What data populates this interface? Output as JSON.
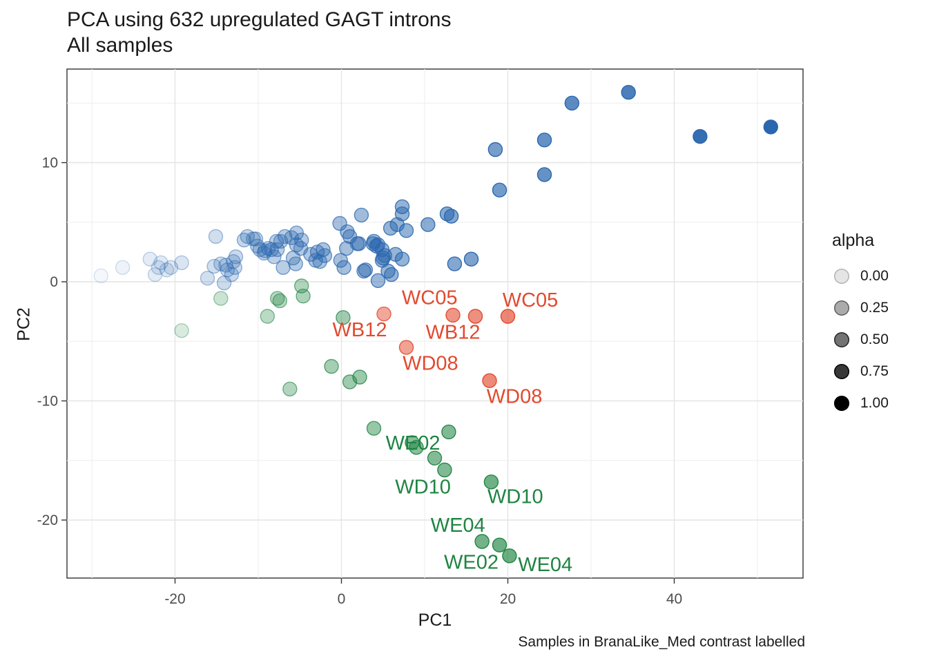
{
  "header": {
    "title_line1": "PCA using 632 upregulated GAGT introns",
    "title_line2": "All samples"
  },
  "caption": "Samples in BranaLike_Med contrast labelled",
  "legend": {
    "title": "alpha",
    "entries": [
      {
        "label": "0.00",
        "value": 0.0
      },
      {
        "label": "0.25",
        "value": 0.25
      },
      {
        "label": "0.50",
        "value": 0.5
      },
      {
        "label": "0.75",
        "value": 0.75
      },
      {
        "label": "1.00",
        "value": 1.0
      }
    ]
  },
  "axes": {
    "x": {
      "label": "PC1",
      "ticks": [
        -20,
        0,
        20,
        40
      ],
      "minor_ticks": [
        -30,
        -10,
        10,
        30,
        50
      ],
      "range": [
        -33,
        55.5
      ]
    },
    "y": {
      "label": "PC2",
      "ticks": [
        -20,
        -10,
        0,
        10
      ],
      "minor_ticks": [
        -15,
        -5,
        5,
        15
      ],
      "range": [
        -24.8,
        17.9
      ]
    }
  },
  "colors": {
    "blue": "#2A67AE",
    "green": "#1F8442",
    "red": "#E2492F",
    "grid_major": "#E4E4E4",
    "grid_minor": "#F0F0F0",
    "panel_border": "#333333",
    "tick_mark": "#333333",
    "tick_label": "#4D4D4D",
    "legend_dot": "#000000"
  },
  "chart_data": {
    "type": "scatter",
    "title": "PCA using 632 upregulated GAGT introns",
    "subtitle": "All samples",
    "xlabel": "PC1",
    "ylabel": "PC2",
    "xlim": [
      -33,
      55.5
    ],
    "ylim": [
      -24.8,
      17.9
    ],
    "grid": true,
    "legend_position": "right",
    "alpha_legend_values": [
      0.0,
      0.25,
      0.5,
      0.75,
      1.0
    ],
    "note": "points are [PC1, PC2, alpha]; alpha increases with PC1",
    "series": [
      {
        "name": "blue",
        "color": "#2A67AE",
        "points": [
          [
            -28.9,
            0.5,
            0.05
          ],
          [
            -26.3,
            1.2,
            0.08
          ],
          [
            -23.0,
            1.9,
            0.13
          ],
          [
            -22.4,
            0.6,
            0.13
          ],
          [
            -22.0,
            1.2,
            0.14
          ],
          [
            -21.7,
            1.6,
            0.14
          ],
          [
            -21.0,
            1.0,
            0.15
          ],
          [
            -20.5,
            1.2,
            0.16
          ],
          [
            -19.2,
            1.6,
            0.17
          ],
          [
            -16.1,
            0.3,
            0.21
          ],
          [
            -15.3,
            1.3,
            0.22
          ],
          [
            -15.1,
            3.8,
            0.22
          ],
          [
            -14.5,
            1.5,
            0.23
          ],
          [
            -14.1,
            -0.1,
            0.24
          ],
          [
            -13.9,
            1.4,
            0.24
          ],
          [
            -13.7,
            1.0,
            0.24
          ],
          [
            -13.2,
            0.6,
            0.25
          ],
          [
            -13.0,
            1.7,
            0.25
          ],
          [
            -12.8,
            1.2,
            0.25
          ],
          [
            -12.7,
            2.1,
            0.25
          ],
          [
            -11.7,
            3.5,
            0.27
          ],
          [
            -11.3,
            3.8,
            0.27
          ],
          [
            -10.6,
            3.6,
            0.28
          ],
          [
            -10.3,
            3.6,
            0.28
          ],
          [
            -10.1,
            3.0,
            0.29
          ],
          [
            -9.8,
            2.7,
            0.29
          ],
          [
            -9.3,
            2.4,
            0.3
          ],
          [
            -9.2,
            2.6,
            0.3
          ],
          [
            -8.8,
            2.8,
            0.3
          ],
          [
            -8.4,
            2.7,
            0.31
          ],
          [
            -8.1,
            2.1,
            0.31
          ],
          [
            -7.8,
            3.4,
            0.32
          ],
          [
            -7.7,
            2.7,
            0.32
          ],
          [
            -7.3,
            3.4,
            0.32
          ],
          [
            -7.0,
            1.2,
            0.33
          ],
          [
            -6.8,
            3.8,
            0.33
          ],
          [
            -6.0,
            3.7,
            0.34
          ],
          [
            -5.8,
            2.0,
            0.34
          ],
          [
            -5.5,
            1.5,
            0.34
          ],
          [
            -5.4,
            4.1,
            0.35
          ],
          [
            -5.4,
            3.1,
            0.35
          ],
          [
            -4.9,
            2.8,
            0.35
          ],
          [
            -4.8,
            3.5,
            0.35
          ],
          [
            -3.7,
            2.3,
            0.37
          ],
          [
            -3.1,
            1.8,
            0.37
          ],
          [
            -2.9,
            2.5,
            0.38
          ],
          [
            -2.6,
            1.7,
            0.38
          ],
          [
            -2.2,
            2.7,
            0.39
          ],
          [
            -2.0,
            2.2,
            0.39
          ],
          [
            -0.2,
            4.9,
            0.41
          ],
          [
            -0.1,
            1.8,
            0.41
          ],
          [
            0.3,
            1.2,
            0.42
          ],
          [
            0.6,
            2.8,
            0.42
          ],
          [
            0.7,
            4.2,
            0.42
          ],
          [
            1.0,
            3.8,
            0.43
          ],
          [
            1.9,
            3.2,
            0.44
          ],
          [
            2.1,
            3.2,
            0.44
          ],
          [
            2.4,
            5.6,
            0.44
          ],
          [
            2.7,
            0.9,
            0.45
          ],
          [
            2.9,
            1.0,
            0.45
          ],
          [
            3.8,
            3.2,
            0.46
          ],
          [
            3.9,
            3.4,
            0.46
          ],
          [
            4.2,
            3.0,
            0.47
          ],
          [
            4.4,
            3.1,
            0.47
          ],
          [
            4.4,
            0.1,
            0.47
          ],
          [
            4.9,
            2.7,
            0.47
          ],
          [
            4.9,
            1.8,
            0.47
          ],
          [
            5.0,
            2.0,
            0.48
          ],
          [
            5.2,
            2.2,
            0.48
          ],
          [
            5.6,
            0.9,
            0.48
          ],
          [
            5.9,
            4.5,
            0.49
          ],
          [
            6.0,
            0.6,
            0.49
          ],
          [
            6.5,
            2.3,
            0.49
          ],
          [
            6.7,
            4.8,
            0.5
          ],
          [
            7.3,
            1.9,
            0.5
          ],
          [
            7.3,
            6.3,
            0.5
          ],
          [
            7.3,
            5.7,
            0.5
          ],
          [
            7.8,
            4.3,
            0.51
          ],
          [
            10.4,
            4.8,
            0.54
          ],
          [
            12.7,
            5.7,
            0.57
          ],
          [
            13.2,
            5.5,
            0.58
          ],
          [
            13.6,
            1.5,
            0.58
          ],
          [
            15.6,
            1.9,
            0.61
          ],
          [
            18.5,
            11.1,
            0.64
          ],
          [
            19.0,
            7.7,
            0.65
          ],
          [
            24.4,
            11.9,
            0.72
          ],
          [
            24.4,
            9.0,
            0.72
          ],
          [
            27.7,
            15.0,
            0.76
          ],
          [
            34.5,
            15.9,
            0.84
          ],
          [
            43.1,
            12.2,
            0.95
          ],
          [
            51.6,
            13.0,
            1.0
          ]
        ]
      },
      {
        "name": "green",
        "color": "#1F8442",
        "points": [
          [
            -19.2,
            -4.1,
            0.17
          ],
          [
            -14.5,
            -1.4,
            0.23
          ],
          [
            -8.9,
            -2.9,
            0.3
          ],
          [
            -7.7,
            -1.4,
            0.32
          ],
          [
            -7.4,
            -1.6,
            0.32
          ],
          [
            -6.2,
            -9.0,
            0.34
          ],
          [
            -4.8,
            -0.35,
            0.35
          ],
          [
            -4.6,
            -1.2,
            0.36
          ],
          [
            -1.2,
            -7.1,
            0.4
          ],
          [
            0.2,
            -3.0,
            0.42
          ],
          [
            1.0,
            -8.4,
            0.43
          ],
          [
            2.2,
            -8.0,
            0.44
          ],
          [
            3.9,
            -12.3,
            0.46
          ],
          [
            8.5,
            -13.5,
            0.52
          ],
          [
            9.0,
            -13.9,
            0.53
          ],
          [
            11.2,
            -14.8,
            0.55
          ],
          [
            12.4,
            -15.8,
            0.57
          ],
          [
            12.9,
            -12.6,
            0.57
          ],
          [
            16.9,
            -21.8,
            0.62
          ],
          [
            18.0,
            -16.8,
            0.64
          ],
          [
            19.0,
            -22.1,
            0.65
          ],
          [
            20.2,
            -23.0,
            0.67
          ]
        ]
      },
      {
        "name": "red",
        "color": "#E2492F",
        "points": [
          [
            5.1,
            -2.7,
            0.48
          ],
          [
            7.8,
            -5.5,
            0.51
          ],
          [
            13.4,
            -2.8,
            0.58
          ],
          [
            16.1,
            -2.9,
            0.61
          ],
          [
            17.8,
            -8.3,
            0.64
          ],
          [
            20.0,
            -2.9,
            0.66
          ]
        ]
      }
    ],
    "point_labels": [
      {
        "text": "WC05",
        "x": 10.6,
        "y": -1.3,
        "series": "red"
      },
      {
        "text": "WC05",
        "x": 22.7,
        "y": -1.5,
        "series": "red"
      },
      {
        "text": "WB12",
        "x": 2.2,
        "y": -4.0,
        "series": "red"
      },
      {
        "text": "WB12",
        "x": 13.4,
        "y": -4.2,
        "series": "red"
      },
      {
        "text": "WD08",
        "x": 10.7,
        "y": -6.8,
        "series": "red"
      },
      {
        "text": "WD08",
        "x": 20.8,
        "y": -9.6,
        "series": "red"
      },
      {
        "text": "WE02",
        "x": 8.6,
        "y": -13.5,
        "series": "green"
      },
      {
        "text": "WD10",
        "x": 9.8,
        "y": -17.2,
        "series": "green"
      },
      {
        "text": "WD10",
        "x": 20.9,
        "y": -18.0,
        "series": "green"
      },
      {
        "text": "WE04",
        "x": 14.0,
        "y": -20.4,
        "series": "green"
      },
      {
        "text": "WE02",
        "x": 15.6,
        "y": -23.5,
        "series": "green"
      },
      {
        "text": "WE04",
        "x": 24.5,
        "y": -23.7,
        "series": "green"
      }
    ]
  }
}
